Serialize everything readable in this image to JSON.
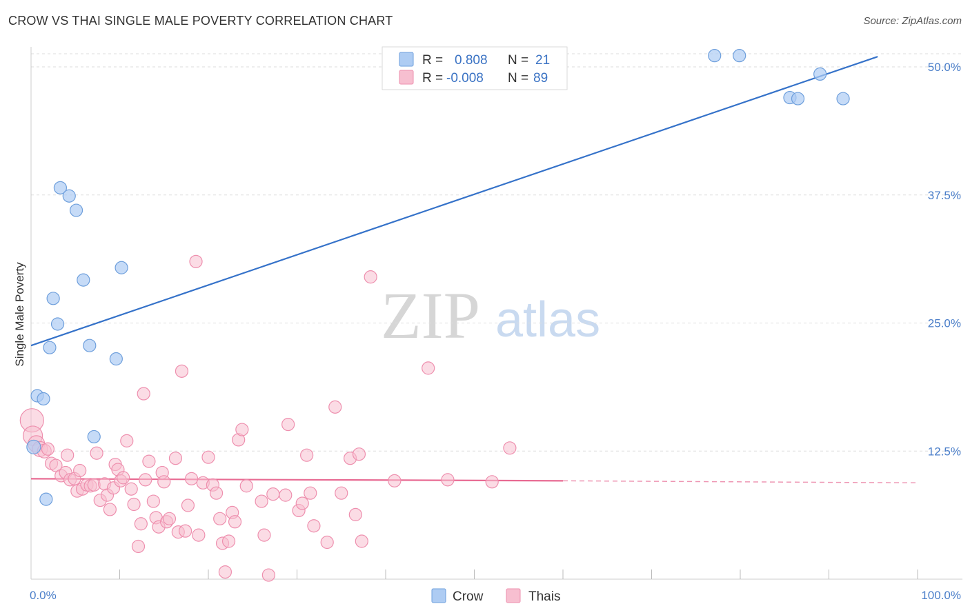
{
  "title": "CROW VS THAI SINGLE MALE POVERTY CORRELATION CHART",
  "source": "Source: ZipAtlas.com",
  "colors": {
    "crow_fill": "#aeccf3",
    "crow_stroke": "#6e9fdc",
    "crow_line": "#3572c9",
    "thai_fill": "#f7bfd0",
    "thai_stroke": "#ee8fae",
    "thai_line": "#e86b93",
    "tick_text": "#4a7ec9",
    "grid": "#dddddd"
  },
  "legend": {
    "rows": [
      {
        "r_label": "R =",
        "r_value": "0.808",
        "n_label": "N =",
        "n_value": "21"
      },
      {
        "r_label": "R =",
        "r_value": "-0.008",
        "n_label": "N =",
        "n_value": "89"
      }
    ]
  },
  "bottom_legend": [
    "Crow",
    "Thais"
  ],
  "watermark": {
    "zip": "ZIP",
    "atlas": "atlas"
  },
  "chart_data": {
    "type": "scatter",
    "title": "CROW VS THAI SINGLE MALE POVERTY CORRELATION CHART",
    "xlabel": "",
    "ylabel": "Single Male Poverty",
    "xlim": [
      0,
      100
    ],
    "ylim": [
      0,
      52
    ],
    "x_tick_labels": [
      "0.0%",
      "100.0%"
    ],
    "y_ticks": [
      12.5,
      25.0,
      37.5,
      50.0
    ],
    "y_tick_labels": [
      "12.5%",
      "25.0%",
      "37.5%",
      "50.0%"
    ],
    "series": [
      {
        "name": "Crow",
        "r": 0.808,
        "n": 21,
        "trend": {
          "x": [
            0,
            95.5
          ],
          "y": [
            22.8,
            51.0
          ]
        },
        "points": [
          {
            "x": 0.3,
            "y": 12.9,
            "s": 10
          },
          {
            "x": 0.7,
            "y": 17.9,
            "s": 9
          },
          {
            "x": 1.4,
            "y": 17.6,
            "s": 9
          },
          {
            "x": 1.7,
            "y": 7.8,
            "s": 9
          },
          {
            "x": 2.1,
            "y": 22.6,
            "s": 9
          },
          {
            "x": 2.5,
            "y": 27.4,
            "s": 9
          },
          {
            "x": 3.0,
            "y": 24.9,
            "s": 9
          },
          {
            "x": 3.3,
            "y": 38.2,
            "s": 9
          },
          {
            "x": 4.3,
            "y": 37.4,
            "s": 9
          },
          {
            "x": 5.1,
            "y": 36.0,
            "s": 9
          },
          {
            "x": 5.9,
            "y": 29.2,
            "s": 9
          },
          {
            "x": 6.6,
            "y": 22.8,
            "s": 9
          },
          {
            "x": 7.1,
            "y": 13.9,
            "s": 9
          },
          {
            "x": 9.6,
            "y": 21.5,
            "s": 9
          },
          {
            "x": 10.2,
            "y": 30.4,
            "s": 9
          },
          {
            "x": 77.1,
            "y": 51.1,
            "s": 9
          },
          {
            "x": 79.9,
            "y": 51.1,
            "s": 9
          },
          {
            "x": 85.6,
            "y": 47.0,
            "s": 9
          },
          {
            "x": 86.5,
            "y": 46.9,
            "s": 9
          },
          {
            "x": 89.0,
            "y": 49.3,
            "s": 9
          },
          {
            "x": 91.6,
            "y": 46.9,
            "s": 9
          }
        ]
      },
      {
        "name": "Thais",
        "r": -0.008,
        "n": 89,
        "trend": {
          "x": [
            0,
            60
          ],
          "y": [
            9.8,
            9.6
          ]
        },
        "trend_dashed": {
          "x": [
            60,
            100
          ],
          "y": [
            9.6,
            9.4
          ]
        },
        "points": [
          {
            "x": 0.1,
            "y": 15.5,
            "s": 17
          },
          {
            "x": 0.2,
            "y": 14.0,
            "s": 14
          },
          {
            "x": 0.6,
            "y": 13.2,
            "s": 12
          },
          {
            "x": 1.0,
            "y": 12.7,
            "s": 11
          },
          {
            "x": 1.5,
            "y": 12.5,
            "s": 10
          },
          {
            "x": 1.9,
            "y": 12.7,
            "s": 9
          },
          {
            "x": 2.3,
            "y": 11.3,
            "s": 9
          },
          {
            "x": 2.8,
            "y": 11.1,
            "s": 9
          },
          {
            "x": 3.4,
            "y": 10.1,
            "s": 9
          },
          {
            "x": 3.9,
            "y": 10.4,
            "s": 9
          },
          {
            "x": 4.1,
            "y": 12.1,
            "s": 9
          },
          {
            "x": 4.4,
            "y": 9.7,
            "s": 9
          },
          {
            "x": 4.9,
            "y": 9.8,
            "s": 9
          },
          {
            "x": 5.2,
            "y": 8.6,
            "s": 9
          },
          {
            "x": 5.5,
            "y": 10.6,
            "s": 9
          },
          {
            "x": 5.8,
            "y": 8.8,
            "s": 9
          },
          {
            "x": 6.3,
            "y": 9.2,
            "s": 9
          },
          {
            "x": 6.7,
            "y": 9.1,
            "s": 9
          },
          {
            "x": 7.1,
            "y": 9.2,
            "s": 9
          },
          {
            "x": 7.4,
            "y": 12.3,
            "s": 9
          },
          {
            "x": 7.8,
            "y": 7.7,
            "s": 9
          },
          {
            "x": 8.3,
            "y": 9.3,
            "s": 9
          },
          {
            "x": 8.6,
            "y": 8.2,
            "s": 9
          },
          {
            "x": 8.9,
            "y": 6.8,
            "s": 9
          },
          {
            "x": 9.3,
            "y": 8.9,
            "s": 9
          },
          {
            "x": 9.5,
            "y": 11.2,
            "s": 9
          },
          {
            "x": 9.8,
            "y": 10.7,
            "s": 9
          },
          {
            "x": 10.1,
            "y": 9.6,
            "s": 9
          },
          {
            "x": 10.4,
            "y": 9.9,
            "s": 9
          },
          {
            "x": 10.8,
            "y": 13.5,
            "s": 9
          },
          {
            "x": 11.3,
            "y": 8.8,
            "s": 9
          },
          {
            "x": 11.6,
            "y": 7.3,
            "s": 9
          },
          {
            "x": 12.1,
            "y": 3.2,
            "s": 9
          },
          {
            "x": 12.4,
            "y": 5.4,
            "s": 9
          },
          {
            "x": 12.7,
            "y": 18.1,
            "s": 9
          },
          {
            "x": 12.9,
            "y": 9.7,
            "s": 9
          },
          {
            "x": 13.3,
            "y": 11.5,
            "s": 9
          },
          {
            "x": 13.8,
            "y": 7.6,
            "s": 9
          },
          {
            "x": 14.1,
            "y": 6.0,
            "s": 9
          },
          {
            "x": 14.4,
            "y": 5.1,
            "s": 9
          },
          {
            "x": 14.8,
            "y": 10.4,
            "s": 9
          },
          {
            "x": 15.0,
            "y": 9.5,
            "s": 9
          },
          {
            "x": 15.3,
            "y": 5.6,
            "s": 9
          },
          {
            "x": 15.6,
            "y": 5.9,
            "s": 9
          },
          {
            "x": 16.3,
            "y": 11.8,
            "s": 9
          },
          {
            "x": 16.6,
            "y": 4.6,
            "s": 9
          },
          {
            "x": 17.0,
            "y": 20.3,
            "s": 9
          },
          {
            "x": 17.4,
            "y": 4.7,
            "s": 9
          },
          {
            "x": 17.7,
            "y": 7.2,
            "s": 9
          },
          {
            "x": 18.1,
            "y": 9.8,
            "s": 9
          },
          {
            "x": 18.6,
            "y": 31.0,
            "s": 9
          },
          {
            "x": 18.9,
            "y": 4.3,
            "s": 9
          },
          {
            "x": 19.4,
            "y": 9.4,
            "s": 9
          },
          {
            "x": 20.0,
            "y": 11.9,
            "s": 9
          },
          {
            "x": 20.5,
            "y": 9.2,
            "s": 9
          },
          {
            "x": 20.9,
            "y": 8.4,
            "s": 9
          },
          {
            "x": 21.3,
            "y": 5.9,
            "s": 9
          },
          {
            "x": 21.6,
            "y": 3.5,
            "s": 9
          },
          {
            "x": 21.9,
            "y": 0.7,
            "s": 9
          },
          {
            "x": 22.3,
            "y": 3.7,
            "s": 9
          },
          {
            "x": 22.7,
            "y": 6.5,
            "s": 9
          },
          {
            "x": 23.0,
            "y": 5.6,
            "s": 9
          },
          {
            "x": 23.4,
            "y": 13.6,
            "s": 9
          },
          {
            "x": 23.8,
            "y": 14.6,
            "s": 9
          },
          {
            "x": 24.3,
            "y": 9.1,
            "s": 9
          },
          {
            "x": 26.0,
            "y": 7.6,
            "s": 9
          },
          {
            "x": 26.3,
            "y": 4.3,
            "s": 9
          },
          {
            "x": 26.8,
            "y": 0.4,
            "s": 9
          },
          {
            "x": 27.3,
            "y": 8.3,
            "s": 9
          },
          {
            "x": 28.7,
            "y": 8.2,
            "s": 9
          },
          {
            "x": 29.0,
            "y": 15.1,
            "s": 9
          },
          {
            "x": 30.2,
            "y": 6.7,
            "s": 9
          },
          {
            "x": 30.6,
            "y": 7.4,
            "s": 9
          },
          {
            "x": 31.1,
            "y": 12.1,
            "s": 9
          },
          {
            "x": 31.5,
            "y": 8.4,
            "s": 9
          },
          {
            "x": 31.9,
            "y": 5.2,
            "s": 9
          },
          {
            "x": 33.4,
            "y": 3.6,
            "s": 9
          },
          {
            "x": 34.3,
            "y": 16.8,
            "s": 9
          },
          {
            "x": 35.0,
            "y": 8.4,
            "s": 9
          },
          {
            "x": 36.0,
            "y": 11.8,
            "s": 9
          },
          {
            "x": 36.6,
            "y": 6.3,
            "s": 9
          },
          {
            "x": 37.0,
            "y": 12.2,
            "s": 9
          },
          {
            "x": 37.3,
            "y": 3.7,
            "s": 9
          },
          {
            "x": 38.3,
            "y": 29.5,
            "s": 9
          },
          {
            "x": 44.8,
            "y": 20.6,
            "s": 9
          },
          {
            "x": 54.0,
            "y": 12.8,
            "s": 9
          },
          {
            "x": 41.0,
            "y": 9.6,
            "s": 9
          },
          {
            "x": 47.0,
            "y": 9.7,
            "s": 9
          },
          {
            "x": 52.0,
            "y": 9.5,
            "s": 9
          }
        ]
      }
    ]
  }
}
